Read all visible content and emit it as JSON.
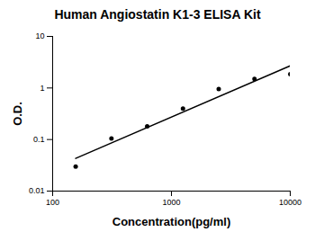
{
  "chart_data": {
    "type": "scatter",
    "title": "Human Angiostatin K1-3 ELISA Kit",
    "x_label": "Concentration(pg/ml)",
    "y_label": "O.D.",
    "log": true,
    "xlim": [
      100,
      10000
    ],
    "xticks": [
      100,
      1000,
      10000
    ],
    "ylim": [
      0.01,
      10
    ],
    "yticks": [
      0.01,
      0.1,
      1,
      10
    ],
    "series": [
      {
        "type": "scatter",
        "marker": "circle",
        "color": "#000000",
        "x": [
          156.25,
          312.5,
          625,
          1250,
          2500,
          5000,
          10000
        ],
        "values": [
          0.03,
          0.105,
          0.18,
          0.4,
          0.95,
          1.5,
          1.85
        ]
      },
      {
        "type": "line",
        "line_style": "solid",
        "color": "#000000",
        "x": [
          156.25,
          10000
        ],
        "values": [
          0.043,
          2.7
        ]
      }
    ]
  }
}
